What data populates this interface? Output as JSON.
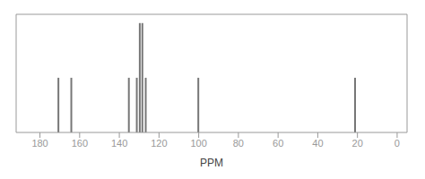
{
  "chart_data": {
    "type": "stem",
    "x": [
      170.5,
      164.0,
      135.0,
      131.0,
      129.5,
      128.2,
      126.5,
      100.0,
      21.0
    ],
    "values": [
      0.5,
      0.5,
      0.5,
      0.5,
      1.0,
      1.0,
      0.5,
      0.5,
      0.5
    ],
    "color": "#777777",
    "xlim": [
      192,
      -5
    ],
    "ylim": [
      0,
      1.08
    ],
    "xticks": [
      180,
      160,
      140,
      120,
      100,
      80,
      60,
      40,
      20,
      0
    ],
    "xlabel": "PPM",
    "tick_labels": "x"
  }
}
